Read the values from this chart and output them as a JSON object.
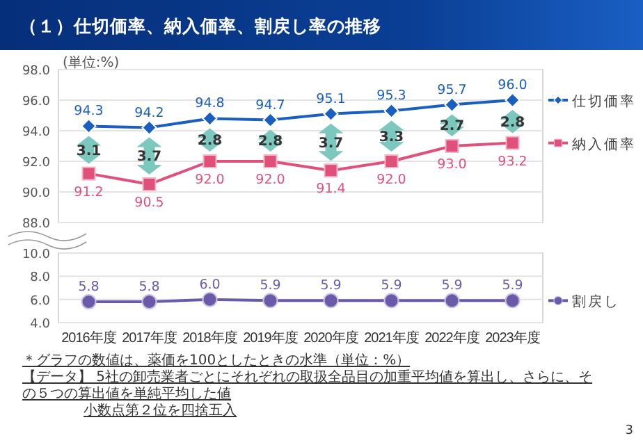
{
  "chart_data": [
    {
      "type": "line",
      "title": "（１）仕切価率、納入価率、割戻し率の推移",
      "categories": [
        "2016年度",
        "2017年度",
        "2018年度",
        "2019年度",
        "2020年度",
        "2021年度",
        "2022年度",
        "2023年度"
      ],
      "series": [
        {
          "name": "仕切価率",
          "color": "#1a5fbf",
          "marker": "diamond",
          "values": [
            94.3,
            94.2,
            94.8,
            94.7,
            95.1,
            95.3,
            95.7,
            96.0
          ],
          "value_labels": [
            "94.3",
            "94.2",
            "94.8",
            "94.7",
            "95.1",
            "95.3",
            "95.7",
            "96.0"
          ]
        },
        {
          "name": "納入価率",
          "color": "#e0507a",
          "marker": "square",
          "values": [
            91.2,
            90.5,
            92.0,
            92.0,
            91.4,
            92.0,
            93.0,
            93.2
          ],
          "value_labels": [
            "91.2",
            "90.5",
            "92.0",
            "92.0",
            "91.4",
            "92.0",
            "93.0",
            "93.2"
          ]
        }
      ],
      "ylim": [
        88,
        98
      ],
      "yticks": [
        {
          "value": 88,
          "label": "88.0"
        },
        {
          "value": 90,
          "label": "90.0"
        },
        {
          "value": 92,
          "label": "92.0"
        },
        {
          "value": 94,
          "label": "94.0"
        },
        {
          "value": 96,
          "label": "96.0"
        },
        {
          "value": 98,
          "label": "98.0"
        }
      ],
      "grid": "y",
      "legend": "right",
      "tick_labels": "y",
      "annotations": [
        "(単位:%)",
        {
          "text": "3.1",
          "x": "2016年度",
          "y": 92.75
        },
        {
          "text": "3.7",
          "x": "2017年度",
          "y": 92.35
        },
        {
          "text": "2.8",
          "x": "2018年度",
          "y": 93.4
        },
        {
          "text": "2.8",
          "x": "2019年度",
          "y": 93.35
        },
        {
          "text": "3.7",
          "x": "2020年度",
          "y": 93.25
        },
        {
          "text": "3.3",
          "x": "2021年度",
          "y": 93.65
        },
        {
          "text": "2.7",
          "x": "2022年度",
          "y": 94.35
        },
        {
          "text": "2.8",
          "x": "2023年度",
          "y": 94.6
        }
      ]
    },
    {
      "type": "line",
      "categories": [
        "2016年度",
        "2017年度",
        "2018年度",
        "2019年度",
        "2020年度",
        "2021年度",
        "2022年度",
        "2023年度"
      ],
      "series": [
        {
          "name": "割戻し",
          "color": "#6a5aa8",
          "marker": "circle",
          "values": [
            5.8,
            5.8,
            6.0,
            5.9,
            5.9,
            5.9,
            5.9,
            5.9
          ],
          "value_labels": [
            "5.8",
            "5.8",
            "6.0",
            "5.9",
            "5.9",
            "5.9",
            "5.9",
            "5.9"
          ]
        }
      ],
      "ylim": [
        4,
        10
      ],
      "yticks": [
        {
          "value": 4,
          "label": "4.0"
        },
        {
          "value": 6,
          "label": "6.0"
        },
        {
          "value": 8,
          "label": "8.0"
        },
        {
          "value": 10,
          "label": "10.0"
        }
      ],
      "grid": "y",
      "legend": "right",
      "annotations": [
        "＊グラフの数値は、薬価を100としたときの水準（単位：%）",
        "【データ】 5社の卸売業者ごとにそれぞれの取扱全品目の加重平均値を算出し、さらに、その５つの算出値を単純平均した値",
        "小数点第２位を四捨五入",
        "3"
      ]
    }
  ]
}
